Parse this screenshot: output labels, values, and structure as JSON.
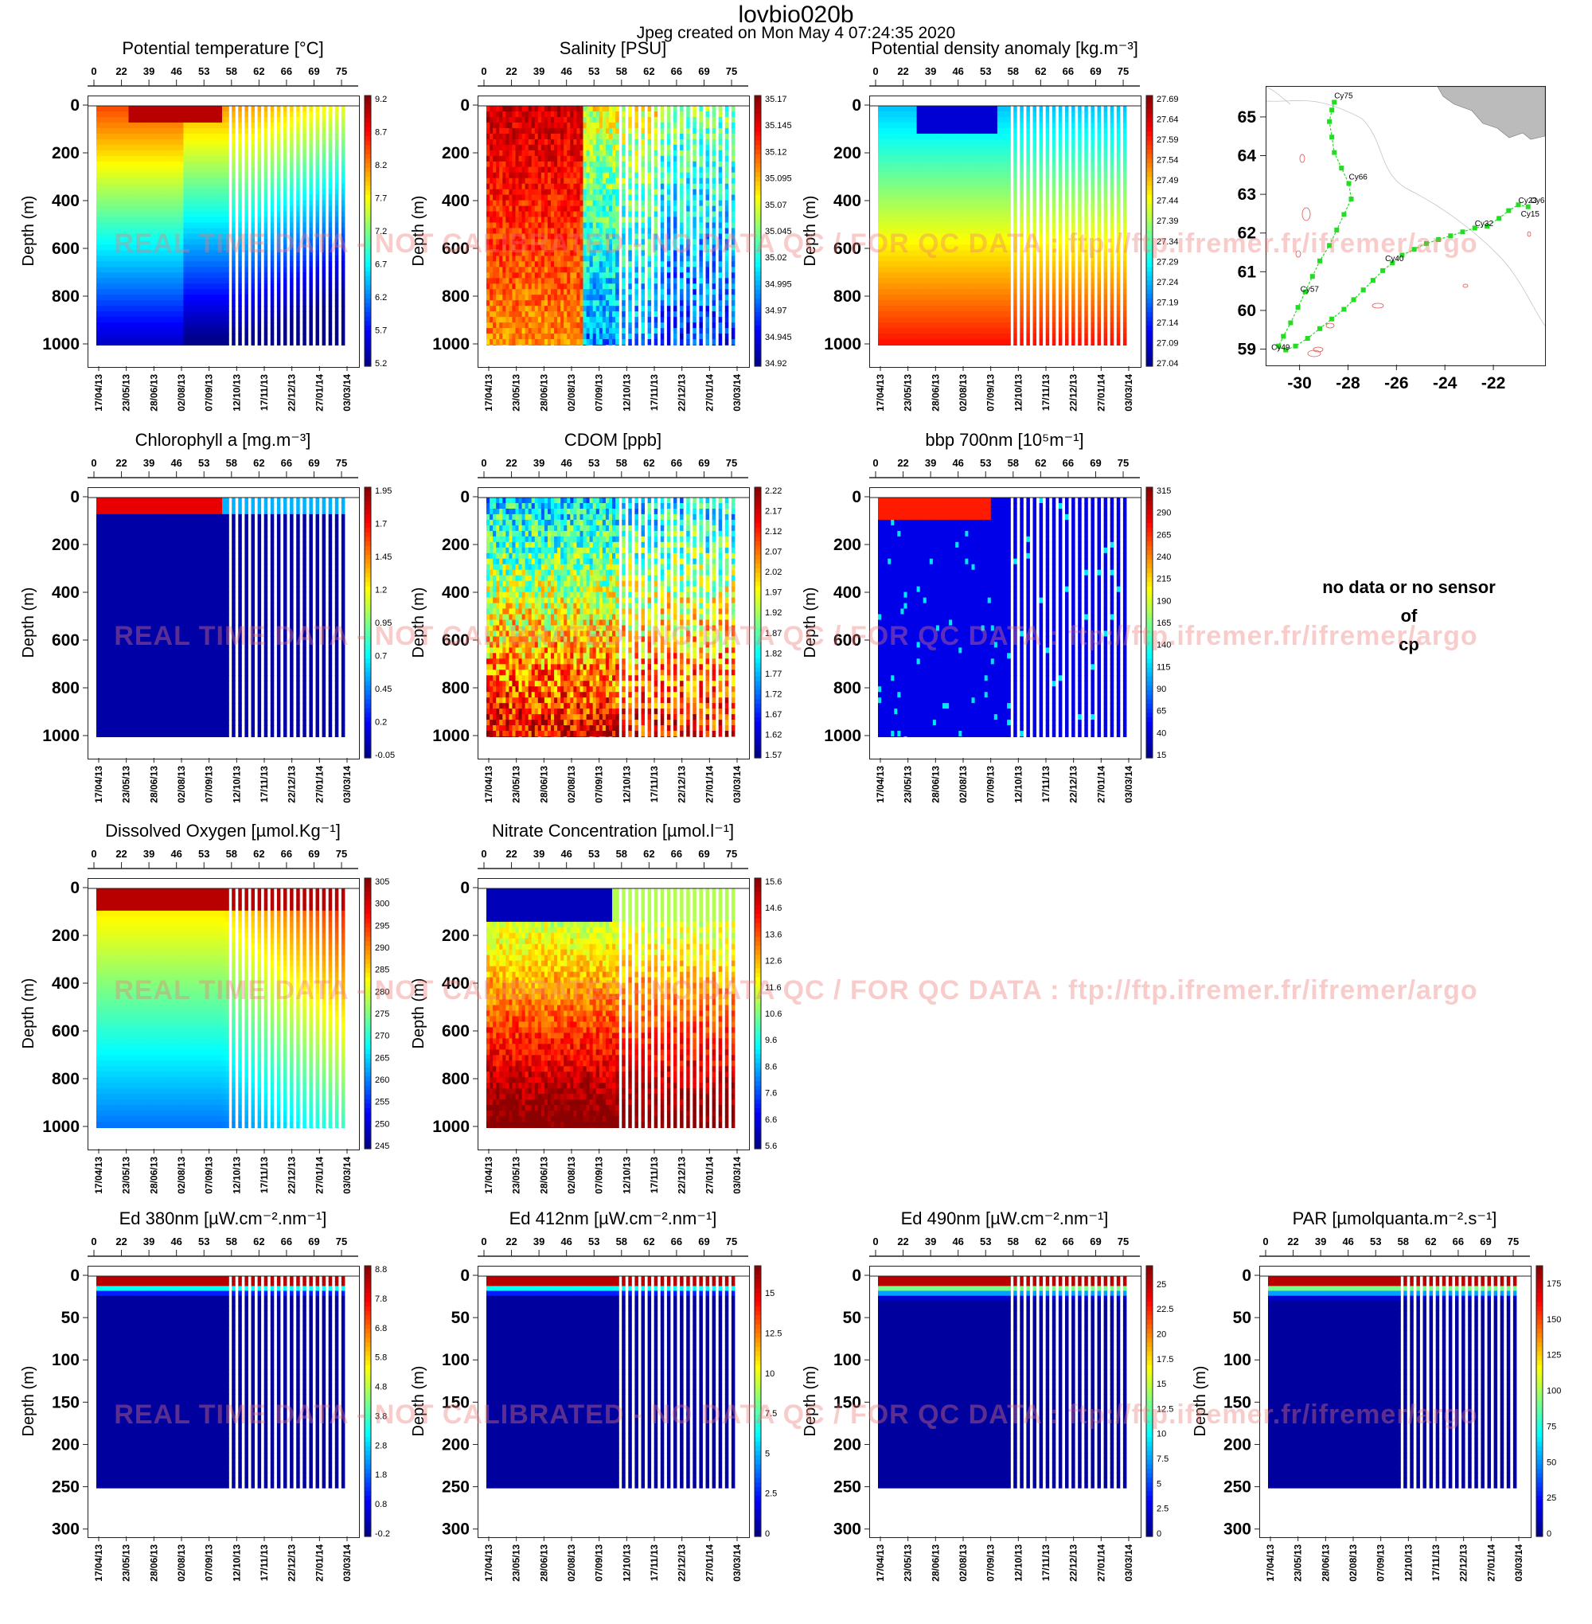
{
  "header": {
    "title": "lovbio020b",
    "subtitle": "Jpeg created on  Mon May  4 07:24:35 2020"
  },
  "watermark_text": "REAL TIME DATA - NOT CALIBRATED - NO DATA QC / FOR QC DATA : ftp://ftp.ifremer.fr/ifremer/argo",
  "no_data": {
    "line1": "no data or no sensor",
    "line2": "of",
    "line3": "cp"
  },
  "axes": {
    "depth_label": "Depth (m)",
    "cycle_ticks": [
      "0",
      "22",
      "39",
      "46",
      "53",
      "58",
      "62",
      "66",
      "69",
      "75"
    ],
    "date_ticks": [
      "17/04/13",
      "23/05/13",
      "28/06/13",
      "02/08/13",
      "07/09/13",
      "12/10/13",
      "17/11/13",
      "22/12/13",
      "27/01/14",
      "03/03/14"
    ],
    "depth_ticks_deep": [
      "0",
      "200",
      "400",
      "600",
      "800",
      "1000"
    ],
    "depth_ticks_shallow": [
      "0",
      "50",
      "100",
      "150",
      "200",
      "250",
      "300"
    ]
  },
  "colors": {
    "scale": [
      "#00008b",
      "#0000ff",
      "#0080ff",
      "#00ffff",
      "#80ff80",
      "#ffff00",
      "#ff8000",
      "#ff0000",
      "#8b0000"
    ],
    "map_track": "#22dd22",
    "map_land": "#bbbbbb",
    "watermark": "#f07878"
  },
  "chart_data": [
    {
      "type": "heatmap",
      "id": "temp",
      "title": "Potential temperature [°C]",
      "ylabel": "Depth (m)",
      "ylim": [
        1080,
        0
      ],
      "colorbar_ticks": [
        "9.2",
        "8.7",
        "8.2",
        "7.7",
        "7.2",
        "6.7",
        "6.2",
        "5.7",
        "5.2"
      ],
      "range": [
        5.2,
        9.2
      ]
    },
    {
      "type": "heatmap",
      "id": "psal",
      "title": "Salinity [PSU]",
      "ylabel": "Depth (m)",
      "ylim": [
        1080,
        0
      ],
      "colorbar_ticks": [
        "35.17",
        "35.145",
        "35.12",
        "35.095",
        "35.07",
        "35.045",
        "35.02",
        "34.995",
        "34.97",
        "34.945",
        "34.92"
      ],
      "range": [
        34.92,
        35.17
      ]
    },
    {
      "type": "heatmap",
      "id": "sigma",
      "title": "Potential density anomaly [kg.m⁻³]",
      "ylabel": "Depth (m)",
      "ylim": [
        1080,
        0
      ],
      "colorbar_ticks": [
        "27.69",
        "27.64",
        "27.59",
        "27.54",
        "27.49",
        "27.44",
        "27.39",
        "27.34",
        "27.29",
        "27.24",
        "27.19",
        "27.14",
        "27.09",
        "27.04"
      ],
      "range": [
        27.04,
        27.69
      ]
    },
    {
      "type": "heatmap",
      "id": "chla",
      "title": "Chlorophyll a [mg.m⁻³]",
      "ylabel": "Depth (m)",
      "ylim": [
        1080,
        0
      ],
      "colorbar_ticks": [
        "1.95",
        "1.7",
        "1.45",
        "1.2",
        "0.95",
        "0.7",
        "0.45",
        "0.2",
        "-0.05"
      ],
      "range": [
        -0.05,
        1.95
      ]
    },
    {
      "type": "heatmap",
      "id": "cdom",
      "title": "CDOM  [ppb]",
      "ylabel": "Depth (m)",
      "ylim": [
        1080,
        0
      ],
      "colorbar_ticks": [
        "2.22",
        "2.17",
        "2.12",
        "2.07",
        "2.02",
        "1.97",
        "1.92",
        "1.87",
        "1.82",
        "1.77",
        "1.72",
        "1.67",
        "1.62",
        "1.57"
      ],
      "range": [
        1.57,
        2.22
      ]
    },
    {
      "type": "heatmap",
      "id": "bbp",
      "title": "bbp 700nm [10⁵m⁻¹]",
      "ylabel": "Depth (m)",
      "ylim": [
        1080,
        0
      ],
      "colorbar_ticks": [
        "315",
        "290",
        "265",
        "240",
        "215",
        "190",
        "165",
        "140",
        "115",
        "90",
        "65",
        "40",
        "15"
      ],
      "range": [
        15,
        315
      ]
    },
    {
      "type": "heatmap",
      "id": "doxy",
      "title": "Dissolved Oxygen [µmol.Kg⁻¹]",
      "ylabel": "Depth (m)",
      "ylim": [
        1080,
        0
      ],
      "colorbar_ticks": [
        "305",
        "300",
        "295",
        "290",
        "285",
        "280",
        "275",
        "270",
        "265",
        "260",
        "255",
        "250",
        "245"
      ],
      "range": [
        245,
        305
      ]
    },
    {
      "type": "heatmap",
      "id": "nitrate",
      "title": "Nitrate Concentration [µmol.l⁻¹]",
      "ylabel": "Depth (m)",
      "ylim": [
        1080,
        0
      ],
      "colorbar_ticks": [
        "15.6",
        "14.6",
        "13.6",
        "12.6",
        "11.6",
        "10.6",
        "9.6",
        "8.6",
        "7.6",
        "6.6",
        "5.6"
      ],
      "range": [
        5.6,
        15.6
      ]
    },
    {
      "type": "heatmap",
      "id": "ed380",
      "title": "Ed 380nm [µW.cm⁻².nm⁻¹]",
      "ylabel": "Depth (m)",
      "ylim": [
        305,
        0
      ],
      "colorbar_ticks": [
        "8.8",
        "7.8",
        "6.8",
        "5.8",
        "4.8",
        "3.8",
        "2.8",
        "1.8",
        "0.8",
        "-0.2"
      ],
      "range": [
        -0.2,
        8.8
      ]
    },
    {
      "type": "heatmap",
      "id": "ed412",
      "title": "Ed 412nm [µW.cm⁻².nm⁻¹]",
      "ylabel": "Depth (m)",
      "ylim": [
        305,
        0
      ],
      "colorbar_ticks": [
        "15",
        "12.5",
        "10",
        "7.5",
        "5",
        "2.5",
        "0"
      ],
      "range": [
        0,
        16.5
      ]
    },
    {
      "type": "heatmap",
      "id": "ed490",
      "title": "Ed 490nm [µW.cm⁻².nm⁻¹]",
      "ylabel": "Depth (m)",
      "ylim": [
        305,
        0
      ],
      "colorbar_ticks": [
        "25",
        "22.5",
        "20",
        "17.5",
        "15",
        "12.5",
        "10",
        "7.5",
        "5",
        "2.5",
        "0"
      ],
      "range": [
        0,
        26.5
      ]
    },
    {
      "type": "heatmap",
      "id": "par",
      "title": "PAR [µmolquanta.m⁻².s⁻¹]",
      "ylabel": "Depth (m)",
      "ylim": [
        305,
        0
      ],
      "colorbar_ticks": [
        "175",
        "150",
        "125",
        "100",
        "75",
        "50",
        "25",
        "0"
      ],
      "range": [
        0,
        185
      ]
    }
  ],
  "map": {
    "type": "scatter",
    "xticks": [
      "-30",
      "-28",
      "-26",
      "-24",
      "-22"
    ],
    "yticks": [
      "65",
      "64",
      "63",
      "62",
      "61",
      "60",
      "59"
    ],
    "xlim": [
      -31.4,
      -19.9
    ],
    "ylim": [
      58.6,
      65.8
    ],
    "labels": [
      {
        "text": "Cy75",
        "lon": -28.6,
        "lat": 65.5
      },
      {
        "text": "Cy66",
        "lon": -28.0,
        "lat": 63.4
      },
      {
        "text": "Cy23",
        "lon": -21.0,
        "lat": 62.8
      },
      {
        "text": "Cy6",
        "lon": -20.5,
        "lat": 62.8
      },
      {
        "text": "Cy15",
        "lon": -20.9,
        "lat": 62.45
      },
      {
        "text": "Cy32",
        "lon": -22.8,
        "lat": 62.2
      },
      {
        "text": "Cy40",
        "lon": -26.5,
        "lat": 61.3
      },
      {
        "text": "Cy57",
        "lon": -30.0,
        "lat": 60.5
      },
      {
        "text": "Cy49",
        "lon": -31.2,
        "lat": 59.0
      }
    ],
    "track": [
      [
        -20.6,
        62.7
      ],
      [
        -21.0,
        62.75
      ],
      [
        -21.4,
        62.6
      ],
      [
        -21.8,
        62.4
      ],
      [
        -22.3,
        62.2
      ],
      [
        -22.8,
        62.15
      ],
      [
        -23.3,
        62.05
      ],
      [
        -23.8,
        61.95
      ],
      [
        -24.3,
        61.85
      ],
      [
        -24.8,
        61.75
      ],
      [
        -25.3,
        61.6
      ],
      [
        -25.8,
        61.45
      ],
      [
        -26.2,
        61.25
      ],
      [
        -26.6,
        61.05
      ],
      [
        -27.0,
        60.8
      ],
      [
        -27.4,
        60.55
      ],
      [
        -27.8,
        60.3
      ],
      [
        -28.2,
        60.05
      ],
      [
        -28.7,
        59.8
      ],
      [
        -29.2,
        59.55
      ],
      [
        -29.7,
        59.3
      ],
      [
        -30.2,
        59.1
      ],
      [
        -30.6,
        59.0
      ],
      [
        -30.9,
        59.1
      ],
      [
        -30.7,
        59.35
      ],
      [
        -30.4,
        59.7
      ],
      [
        -30.1,
        60.1
      ],
      [
        -29.8,
        60.5
      ],
      [
        -29.5,
        60.9
      ],
      [
        -29.2,
        61.3
      ],
      [
        -28.8,
        61.7
      ],
      [
        -28.5,
        62.1
      ],
      [
        -28.2,
        62.5
      ],
      [
        -27.9,
        62.9
      ],
      [
        -28.0,
        63.3
      ],
      [
        -28.3,
        63.7
      ],
      [
        -28.6,
        64.1
      ],
      [
        -28.7,
        64.5
      ],
      [
        -28.8,
        64.9
      ],
      [
        -28.7,
        65.2
      ],
      [
        -28.6,
        65.4
      ]
    ]
  }
}
